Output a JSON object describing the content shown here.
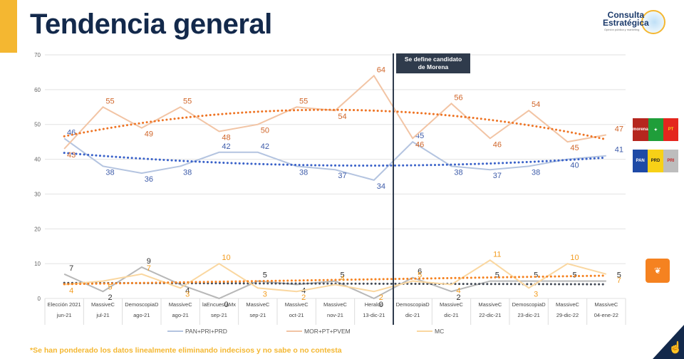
{
  "header": {
    "title": "Tendencia general",
    "logo_name": "Consulta Estratégica",
    "logo_tagline": "Opinión pública y marketing"
  },
  "annotation": {
    "line1": "Se define candidato",
    "line2": "de Morena",
    "after_category_index": 8
  },
  "footnote": "*Se han ponderado los datos linealmente eliminando indecisos y no sabe o no contesta",
  "party_logos": {
    "morena_coalition": [
      "morena",
      "PVEM",
      "PT"
    ],
    "va_por_mexico": [
      "PAN",
      "PRD",
      "PRI"
    ],
    "mc": "Movimiento Ciudadano"
  },
  "colors": {
    "accent": "#F4B731",
    "title": "#13294B",
    "pan_line": "#B4C4E0",
    "pan_label": "#3D5BA9",
    "pan_trend": "#3A62C9",
    "mor_line": "#F2C4A4",
    "mor_label": "#D0662A",
    "mor_trend": "#EE7424",
    "small_pan_line": "#B8B8B8",
    "small_pan_label": "#333333",
    "small_pan_trend": "#444B57",
    "mc_line": "#FAD7A0",
    "mc_label": "#F39C1F",
    "mc_trend": "#F58220"
  },
  "chart_data": {
    "type": "line",
    "title": "Tendencia general",
    "xlabel": "",
    "ylabel": "",
    "ylim": [
      0,
      70
    ],
    "yticks": [
      0,
      10,
      20,
      30,
      40,
      50,
      60,
      70
    ],
    "grid": true,
    "legend_position": "bottom",
    "categories": [
      {
        "pollster": "Elección 2021",
        "date": "jun-21"
      },
      {
        "pollster": "MassiveC",
        "date": "jul-21"
      },
      {
        "pollster": "DemoscopiaD",
        "date": "ago-21"
      },
      {
        "pollster": "MassiveC",
        "date": "ago-21"
      },
      {
        "pollster": "laEncuestaMx",
        "date": "sep-21"
      },
      {
        "pollster": "MassiveC",
        "date": "sep-21"
      },
      {
        "pollster": "MassiveC",
        "date": "oct-21"
      },
      {
        "pollster": "MassiveC",
        "date": "nov-21"
      },
      {
        "pollster": "Heraldo",
        "date": "13-dic-21"
      },
      {
        "pollster": "DemoscopiaD",
        "date": "dic-21"
      },
      {
        "pollster": "MassiveC",
        "date": "dic-21"
      },
      {
        "pollster": "MassiveC",
        "date": "22-dic-21"
      },
      {
        "pollster": "DemoscopiaD",
        "date": "23-dic-21"
      },
      {
        "pollster": "MassiveC",
        "date": "29-dic-22"
      },
      {
        "pollster": "MassiveC",
        "date": "04-ene-22"
      }
    ],
    "series": [
      {
        "name": "PAN+PRI+PRD",
        "group": "upper",
        "values": [
          46,
          38,
          36,
          38,
          42,
          42,
          38,
          37,
          34,
          45,
          38,
          37,
          38,
          40,
          41
        ],
        "trend": "polynomial"
      },
      {
        "name": "MOR+PT+PVEM",
        "group": "upper",
        "values": [
          43,
          55,
          49,
          55,
          48,
          50,
          55,
          54,
          64,
          46,
          56,
          46,
          54,
          45,
          47
        ],
        "trend": "polynomial"
      },
      {
        "name": "PAN+PRI+PRD (bajo)",
        "group": "lower",
        "legend": false,
        "values": [
          7,
          2,
          9,
          4,
          0,
          5,
          4,
          5,
          0,
          6,
          2,
          5,
          5,
          5,
          5
        ],
        "trend": "linear"
      },
      {
        "name": "MC",
        "group": "lower",
        "values": [
          4,
          5,
          7,
          3,
          10,
          3,
          2,
          4,
          2,
          5,
          4,
          11,
          3,
          10,
          7
        ],
        "trend": "linear"
      }
    ],
    "legend": [
      "PAN+PRI+PRD",
      "MOR+PT+PVEM",
      "MC"
    ]
  }
}
